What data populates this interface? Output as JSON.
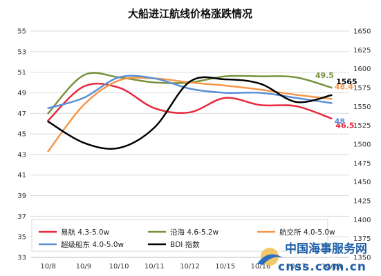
{
  "chart_data": {
    "type": "line",
    "title": "大船进江航线价格涨跌情况",
    "categories": [
      "10/8",
      "10/9",
      "10/10",
      "10/11",
      "10/12",
      "10/15",
      "10/16",
      "10/17",
      "10/18"
    ],
    "ylim": [
      33,
      55
    ],
    "yticks": [
      "55",
      "53",
      "51",
      "49",
      "47",
      "45",
      "43",
      "41",
      "39",
      "37",
      "35",
      "33"
    ],
    "y2lim": [
      1350,
      1650
    ],
    "y2ticks": [
      "1650",
      "1625",
      "1600",
      "1575",
      "1550",
      "1525",
      "1500",
      "1475",
      "1450",
      "1425",
      "1400",
      "1375",
      "1350"
    ],
    "series": [
      {
        "name": "易航 4.3-5.0w",
        "axis": "left",
        "color": "#e8283c",
        "values": [
          46.3,
          49.6,
          49.5,
          47.5,
          47.1,
          48.5,
          47.8,
          47.7,
          46.5
        ],
        "end_label": "46.5"
      },
      {
        "name": "沿海 4.6-5.2w",
        "axis": "left",
        "color": "#77933c",
        "values": [
          47,
          50.7,
          50.5,
          50.0,
          50.0,
          50.6,
          50.6,
          50.5,
          49.5
        ],
        "end_label": "49.5"
      },
      {
        "name": "航交所 4.0-5.0w",
        "axis": "left",
        "color": "#f79646",
        "values": [
          43.3,
          47.8,
          50.2,
          50.4,
          50.0,
          49.7,
          49.3,
          48.8,
          48.4
        ],
        "end_label": "48.4"
      },
      {
        "name": "超级船东 4.0-5.0w",
        "axis": "left",
        "color": "#5b8fd6",
        "values": [
          47.5,
          48.5,
          50.5,
          50.4,
          49.4,
          49.0,
          49.0,
          48.5,
          48
        ],
        "end_label": "48"
      },
      {
        "name": "BDI 指数",
        "axis": "right",
        "color": "#000000",
        "values": [
          1530,
          1502,
          1495,
          1522,
          1583,
          1586,
          1580,
          1556,
          1565
        ],
        "end_label": "1565"
      }
    ],
    "legend_position": "bottom-left"
  },
  "watermark": {
    "text_cn": "中国海事服务网",
    "text_url": "cnss.com.cn"
  }
}
